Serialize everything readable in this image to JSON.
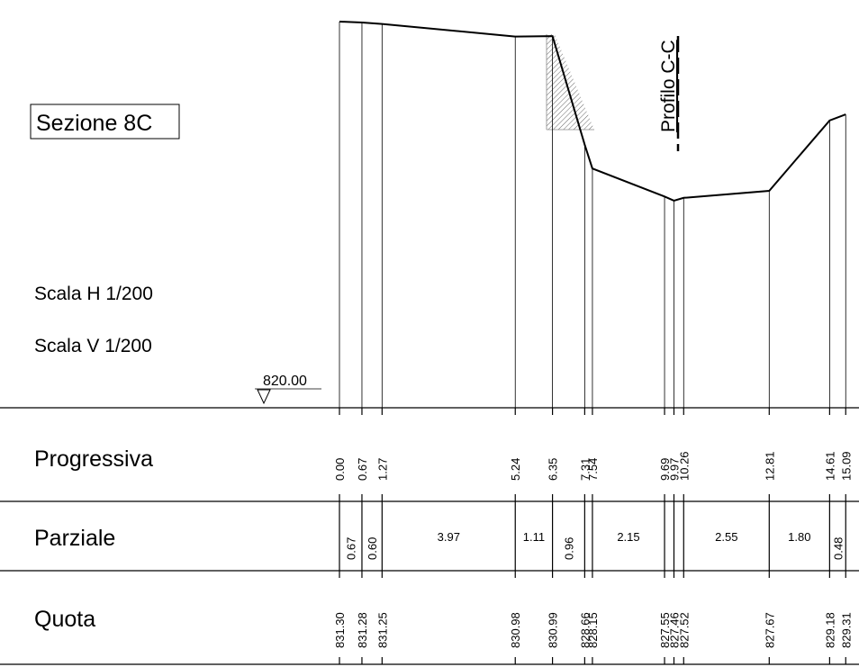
{
  "section_title": "Sezione 8C",
  "scale_h": "Scala H 1/200",
  "scale_v": "Scala V 1/200",
  "datum_label": "820.00",
  "profile_label": "Profilo C-C",
  "rows": {
    "progressiva": "Progressiva",
    "parziale": "Parziale",
    "quota": "Quota"
  },
  "stations": [
    {
      "prog": "0.00",
      "quota": "831.30"
    },
    {
      "prog": "0.67",
      "quota": "831.28"
    },
    {
      "prog": "1.27",
      "quota": "831.25"
    },
    {
      "prog": "5.24",
      "quota": "830.98"
    },
    {
      "prog": "6.35",
      "quota": "830.99"
    },
    {
      "prog": "7.31",
      "quota": "828.66"
    },
    {
      "prog": "7.54",
      "quota": "828.15"
    },
    {
      "prog": "9.69",
      "quota": "827.55"
    },
    {
      "prog": "9.97",
      "quota": "827.46"
    },
    {
      "prog": "10.26",
      "quota": "827.52"
    },
    {
      "prog": "12.81",
      "quota": "827.67"
    },
    {
      "prog": "14.61",
      "quota": "829.18"
    },
    {
      "prog": "15.09",
      "quota": "829.31"
    }
  ],
  "partials": [
    {
      "value": "0.67",
      "vertical": true
    },
    {
      "value": "0.60",
      "vertical": true
    },
    {
      "value": "3.97",
      "vertical": false
    },
    {
      "value": "1.11",
      "vertical": false
    },
    {
      "value": "0.96",
      "vertical": true
    },
    {
      "value": "",
      "vertical": true
    },
    {
      "value": "2.15",
      "vertical": false
    },
    {
      "value": "",
      "vertical": true
    },
    {
      "value": "",
      "vertical": true
    },
    {
      "value": "2.55",
      "vertical": false
    },
    {
      "value": "1.80",
      "vertical": false
    },
    {
      "value": "0.48",
      "vertical": true
    }
  ]
}
